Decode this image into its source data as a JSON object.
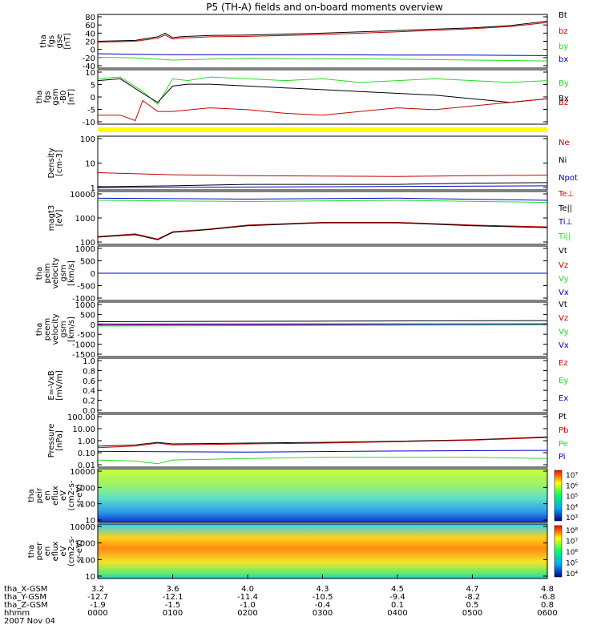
{
  "title": "P5 (TH-A) fields and on-board moments overview",
  "colors": {
    "black": "#000000",
    "red": "#cc0000",
    "green": "#22dd22",
    "blue": "#0000cc",
    "yellow": "#ffff00"
  },
  "chart_data": [
    {
      "type": "line",
      "panel": "fgs_gse",
      "ylabel": [
        "tha",
        "fgs",
        "gse",
        "[nT]"
      ],
      "yticks": [
        "80",
        "60",
        "40",
        "20",
        "0",
        "-20",
        "-40"
      ],
      "ylim": [
        -40,
        80
      ],
      "series": [
        {
          "name": "Bt",
          "color": "#000000",
          "x": [
            0.0,
            0.5,
            0.8,
            0.9,
            1.0,
            1.1,
            1.5,
            2.0,
            3.0,
            4.0,
            5.0,
            5.5,
            6.0
          ],
          "values": [
            20,
            22,
            30,
            38,
            28,
            30,
            33,
            34,
            38,
            44,
            50,
            55,
            65
          ]
        },
        {
          "name": "bz",
          "color": "#cc0000",
          "x": [
            0.0,
            0.5,
            0.8,
            0.9,
            1.0,
            1.1,
            1.5,
            2.0,
            3.0,
            4.0,
            5.0,
            5.5,
            6.0
          ],
          "values": [
            18,
            20,
            27,
            34,
            25,
            27,
            30,
            31,
            35,
            41,
            48,
            53,
            62
          ]
        },
        {
          "name": "by",
          "color": "#22dd22",
          "x": [
            0.0,
            0.5,
            1.0,
            2.0,
            3.0,
            4.0,
            5.0,
            6.0
          ],
          "values": [
            -16,
            -17,
            -22,
            -18,
            -19,
            -20,
            -22,
            -24
          ]
        },
        {
          "name": "bx",
          "color": "#0000cc",
          "x": [
            0.0,
            0.5,
            1.0,
            2.0,
            3.0,
            4.0,
            5.0,
            6.0
          ],
          "values": [
            -8,
            -9,
            -10,
            -10,
            -10,
            -11,
            -11,
            -12
          ]
        }
      ]
    },
    {
      "type": "line",
      "panel": "fgs_gsm",
      "ylabel": [
        "tha",
        "fgs",
        "gsm",
        "-B0",
        "[nT]"
      ],
      "yticks": [
        "10",
        "5",
        "0",
        "-5",
        "-10"
      ],
      "ylim": [
        -15,
        15
      ],
      "series": [
        {
          "name": "By",
          "color": "#22dd22",
          "x": [
            0.0,
            0.3,
            0.6,
            0.8,
            1.0,
            1.2,
            1.5,
            2.0,
            2.5,
            3.0,
            3.5,
            4.0,
            4.5,
            5.0,
            5.5,
            6.0
          ],
          "values": [
            10,
            11,
            3,
            -4,
            10,
            9,
            11,
            10,
            9,
            10,
            8,
            9,
            10,
            9,
            8,
            9
          ]
        },
        {
          "name": "Bx",
          "color": "#000000",
          "x": [
            0.0,
            0.3,
            0.6,
            0.8,
            1.0,
            1.2,
            1.5,
            2.0,
            2.5,
            3.0,
            3.5,
            4.0,
            4.5,
            5.0,
            5.5,
            6.0
          ],
          "values": [
            9,
            10,
            2,
            -3,
            6,
            7,
            7,
            6,
            5,
            4,
            3,
            2,
            1,
            -1,
            -3,
            -1
          ]
        },
        {
          "name": "Bz",
          "color": "#cc0000",
          "x": [
            0.0,
            0.3,
            0.5,
            0.6,
            0.8,
            1.0,
            1.5,
            2.0,
            2.5,
            3.0,
            3.5,
            4.0,
            4.5,
            5.0,
            5.5,
            6.0
          ],
          "values": [
            -10,
            -10,
            -13,
            -2,
            -8,
            -8,
            -6,
            -7,
            -9,
            -10,
            -8,
            -6,
            -7,
            -5,
            -3,
            -1
          ]
        }
      ]
    },
    {
      "type": "line",
      "panel": "density",
      "ylabel": [
        "Density",
        "[cm-3]"
      ],
      "yticks": [
        "100",
        "10",
        "1"
      ],
      "ylim": [
        0.3,
        250
      ],
      "log": true,
      "series": [
        {
          "name": "Ne",
          "color": "#cc0000",
          "x": [
            0.0,
            1.0,
            2.0,
            3.0,
            4.0,
            5.0,
            6.0
          ],
          "values": [
            2.6,
            2.0,
            1.8,
            1.7,
            1.6,
            1.8,
            1.9
          ]
        },
        {
          "name": "Ni",
          "color": "#000000",
          "x": [
            0.0,
            1.0,
            2.0,
            3.0,
            4.0,
            5.0,
            6.0
          ],
          "values": [
            0.45,
            0.5,
            0.6,
            0.6,
            0.6,
            0.7,
            0.75
          ]
        },
        {
          "name": "Npot",
          "color": "#0000cc",
          "x": [
            0.0,
            6.0
          ],
          "values": [
            0.4,
            0.5
          ]
        }
      ]
    },
    {
      "type": "line",
      "panel": "temperature",
      "ylabel": [
        "magt3",
        "[eV]"
      ],
      "yticks": [
        "10000",
        "1000",
        "100"
      ],
      "ylim": [
        40,
        10000
      ],
      "log": true,
      "series": [
        {
          "name": "Te⊥",
          "color": "#cc0000",
          "x": [
            0.0,
            0.5,
            0.8,
            1.0,
            1.5,
            2.0,
            3.0,
            4.0,
            5.0,
            6.0
          ],
          "values": [
            90,
            120,
            70,
            150,
            200,
            300,
            400,
            400,
            300,
            250
          ]
        },
        {
          "name": "Te||",
          "color": "#000000",
          "x": [
            0.0,
            0.5,
            0.8,
            1.0,
            1.5,
            2.0,
            3.0,
            4.0,
            5.0,
            6.0
          ],
          "values": [
            85,
            110,
            65,
            140,
            190,
            280,
            380,
            380,
            280,
            230
          ]
        },
        {
          "name": "Ti⊥",
          "color": "#0000cc",
          "x": [
            0.0,
            2.0,
            4.0,
            6.0
          ],
          "values": [
            5000,
            4500,
            5000,
            4000
          ]
        },
        {
          "name": "Ti||",
          "color": "#22dd22",
          "x": [
            0.0,
            2.0,
            4.0,
            6.0
          ],
          "values": [
            4000,
            3500,
            4000,
            3200
          ]
        }
      ]
    },
    {
      "type": "line",
      "panel": "peim_velocity",
      "ylabel": [
        "tha",
        "peim",
        "velocity",
        "gsm",
        "[km/s]"
      ],
      "yticks": [
        "1000",
        "500",
        "0",
        "-500",
        "-1000"
      ],
      "ylim": [
        -1000,
        1000
      ],
      "series": [
        {
          "name": "Vt",
          "color": "#000000",
          "x": [
            0.0,
            6.0
          ],
          "values": [
            0,
            0
          ]
        },
        {
          "name": "Vz",
          "color": "#cc0000",
          "x": [
            0.0,
            6.0
          ],
          "values": [
            0,
            0
          ]
        },
        {
          "name": "Vy",
          "color": "#22dd22",
          "x": [
            0.0,
            6.0
          ],
          "values": [
            0,
            0
          ]
        },
        {
          "name": "Vx",
          "color": "#0000cc",
          "x": [
            0.0,
            6.0
          ],
          "values": [
            0,
            0
          ]
        }
      ]
    },
    {
      "type": "line",
      "panel": "peem_velocity",
      "ylabel": [
        "tha",
        "peem",
        "velocity",
        "gsm",
        "[km/s]"
      ],
      "yticks": [
        "1000",
        "500",
        "0",
        "-500",
        "-1000",
        "-1500"
      ],
      "ylim": [
        -1500,
        1000
      ],
      "series": [
        {
          "name": "Vt",
          "color": "#000000",
          "x": [
            0.0,
            6.0
          ],
          "values": [
            100,
            150
          ]
        },
        {
          "name": "Vz",
          "color": "#cc0000",
          "x": [
            0.0,
            6.0
          ],
          "values": [
            0,
            0
          ]
        },
        {
          "name": "Vy",
          "color": "#22dd22",
          "x": [
            0.0,
            6.0
          ],
          "values": [
            -100,
            -50
          ]
        },
        {
          "name": "Vx",
          "color": "#0000cc",
          "x": [
            0.0,
            6.0
          ],
          "values": [
            -50,
            0
          ]
        }
      ]
    },
    {
      "type": "line",
      "panel": "efield",
      "ylabel": [
        "E=-VxB",
        "[mV/m]"
      ],
      "yticks": [
        "1.0",
        "0.8",
        "0.6",
        "0.4",
        "0.2",
        "0.0"
      ],
      "ylim": [
        0,
        1
      ],
      "series": [
        {
          "name": "Ez",
          "color": "#cc0000",
          "x": [],
          "values": []
        },
        {
          "name": "Ey",
          "color": "#22dd22",
          "x": [],
          "values": []
        },
        {
          "name": "Ex",
          "color": "#0000cc",
          "x": [],
          "values": []
        }
      ]
    },
    {
      "type": "line",
      "panel": "pressure",
      "ylabel": [
        "Pressure",
        "[nPa]"
      ],
      "yticks": [
        "100.00",
        "10.00",
        "1.00",
        "0.10",
        "0.01"
      ],
      "ylim": [
        0.008,
        150
      ],
      "log": true,
      "series": [
        {
          "name": "Pt",
          "color": "#000000",
          "x": [
            0.0,
            0.5,
            0.8,
            1.0,
            2.0,
            3.0,
            4.0,
            5.0,
            6.0
          ],
          "values": [
            0.4,
            0.5,
            0.8,
            0.6,
            0.7,
            0.8,
            1.0,
            1.3,
            2.2
          ]
        },
        {
          "name": "Pb",
          "color": "#cc0000",
          "x": [
            0.0,
            0.5,
            0.8,
            1.0,
            2.0,
            3.0,
            4.0,
            5.0,
            6.0
          ],
          "values": [
            0.3,
            0.4,
            0.7,
            0.5,
            0.6,
            0.7,
            0.9,
            1.2,
            2.0
          ]
        },
        {
          "name": "Pe",
          "color": "#22dd22",
          "x": [
            0.0,
            0.5,
            0.8,
            1.0,
            2.0,
            3.0,
            4.0,
            5.0,
            6.0
          ],
          "values": [
            0.03,
            0.025,
            0.015,
            0.03,
            0.04,
            0.05,
            0.05,
            0.05,
            0.04
          ]
        },
        {
          "name": "Pi",
          "color": "#0000cc",
          "x": [
            0.0,
            2.0,
            4.0,
            6.0
          ],
          "values": [
            0.15,
            0.13,
            0.16,
            0.18
          ]
        }
      ]
    },
    {
      "type": "heatmap",
      "panel": "peir",
      "ylabel": [
        "tha",
        "peir",
        "en",
        "eflux",
        "eV",
        "(cm2-s-",
        "sr-eV)"
      ],
      "yticks": [
        "10000",
        "1000",
        "100",
        "10"
      ],
      "colorbar_ticks": [
        "10⁷",
        "10⁶",
        "10⁵",
        "10⁴",
        "10³"
      ]
    },
    {
      "type": "heatmap",
      "panel": "peer",
      "ylabel": [
        "tha",
        "peer",
        "en",
        "eflux",
        "eV",
        "(cm2-s-",
        "sr-eV)"
      ],
      "yticks": [
        "10000",
        "1000",
        "100",
        "10"
      ],
      "colorbar_ticks": [
        "10⁸",
        "10⁷",
        "10⁶",
        "10⁵",
        "10⁴"
      ]
    }
  ],
  "xaxis": {
    "row_labels": [
      "tha_X-GSM",
      "tha_Y-GSM",
      "tha_Z-GSM",
      "hhmm",
      "2007 Nov 04"
    ],
    "rows": [
      [
        "3.2",
        "3.6",
        "4.0",
        "4.3",
        "4.5",
        "4.7",
        "4.8"
      ],
      [
        "-12.7",
        "-12.1",
        "-11.4",
        "-10.5",
        "-9.4",
        "-8.2",
        "-6.8"
      ],
      [
        "-1.9",
        "-1.5",
        "-1.0",
        "-0.4",
        "0.1",
        "0.5",
        "0.8"
      ],
      [
        "0000",
        "0100",
        "0200",
        "0300",
        "0400",
        "0500",
        "0600"
      ]
    ]
  }
}
